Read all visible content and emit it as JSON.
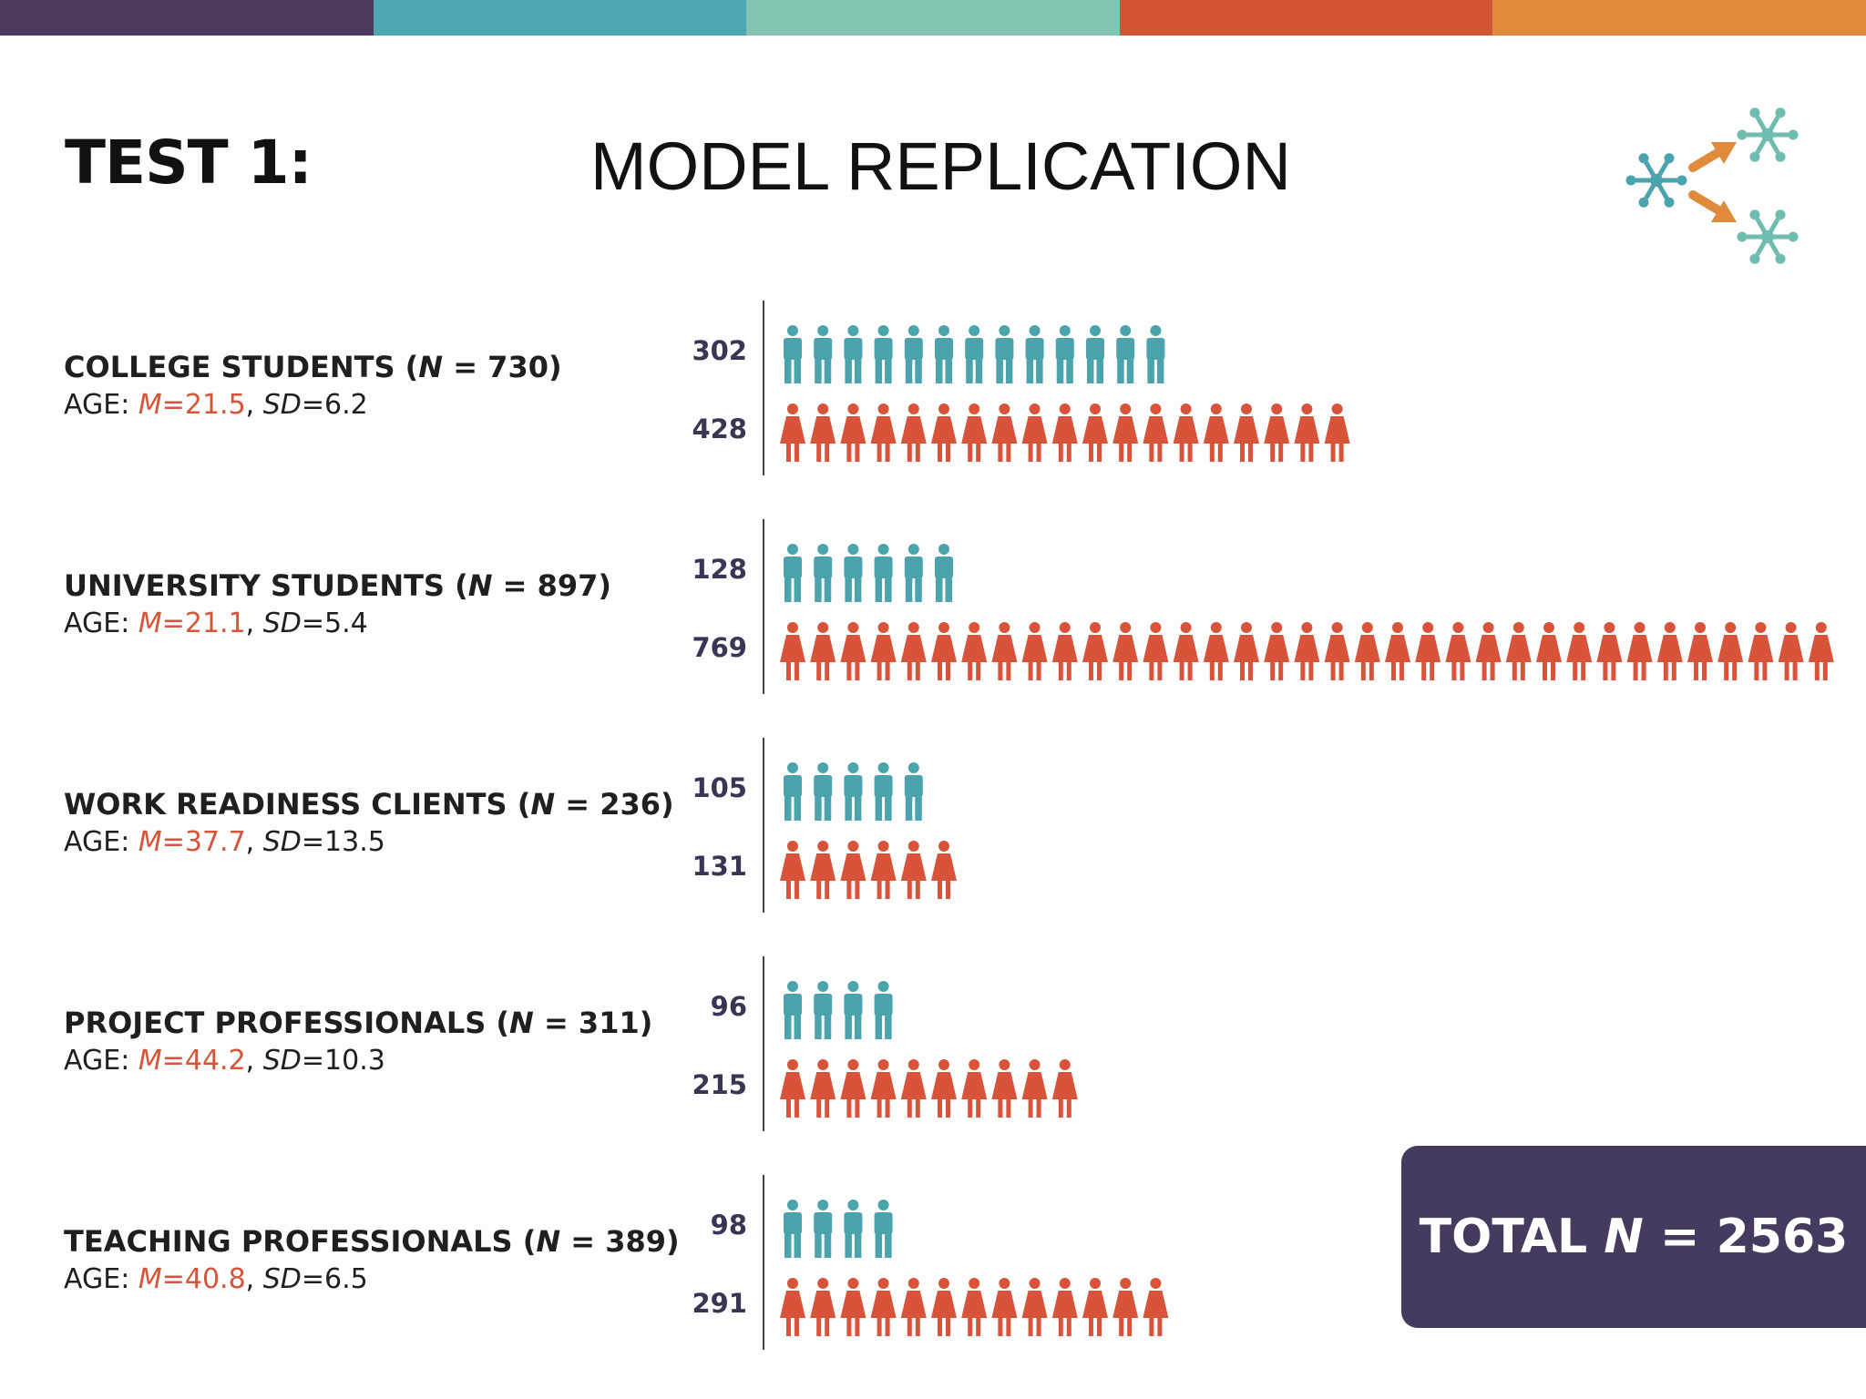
{
  "colors": {
    "topbar": [
      "#4b3a5e",
      "#4ea6b3",
      "#84c4b5",
      "#d35434",
      "#e08a3c"
    ],
    "male": "#4aa3ad",
    "female": "#d7533a",
    "accent_m": "#d5553b",
    "total_box": "#463a5f",
    "logo_primary": "#4aa3ad",
    "logo_secondary": "#6fbdb0",
    "logo_arrow": "#e08a3c"
  },
  "header": {
    "test_label": "TEST 1:",
    "title": "MODEL REPLICATION"
  },
  "logo": {
    "icon": "network-replication-icon"
  },
  "chart_data": {
    "type": "pictogram",
    "unit_note_hidden": "",
    "groups": [
      {
        "name": "COLLEGE STUDENTS",
        "n_label": "N",
        "n_value": "730",
        "age_prefix": "AGE: ",
        "m_label": "M",
        "m_value": "21.5",
        "sd_label": "SD",
        "sd_value": "6.2",
        "male": 302,
        "female": 428,
        "male_icons": 13,
        "female_icons": 19
      },
      {
        "name": "UNIVERSITY STUDENTS",
        "n_label": "N",
        "n_value": "897",
        "age_prefix": "AGE: ",
        "m_label": "M",
        "m_value": "21.1",
        "sd_label": "SD",
        "sd_value": "5.4",
        "male": 128,
        "female": 769,
        "male_icons": 6,
        "female_icons": 35
      },
      {
        "name": "WORK READINESS CLIENTS",
        "n_label": "N",
        "n_value": "236",
        "age_prefix": "AGE: ",
        "m_label": "M",
        "m_value": "37.7",
        "sd_label": "SD",
        "sd_value": "13.5",
        "male": 105,
        "female": 131,
        "male_icons": 5,
        "female_icons": 6
      },
      {
        "name": "PROJECT PROFESSIONALS",
        "n_label": "N",
        "n_value": "311",
        "age_prefix": "AGE: ",
        "m_label": "M",
        "m_value": "44.2",
        "sd_label": "SD",
        "sd_value": "10.3",
        "male": 96,
        "female": 215,
        "male_icons": 4,
        "female_icons": 10
      },
      {
        "name": "TEACHING PROFESSIONALS",
        "n_label": "N",
        "n_value": "389",
        "age_prefix": "AGE: ",
        "m_label": "M",
        "m_value": "40.8",
        "sd_label": "SD",
        "sd_value": "6.5",
        "male": 98,
        "female": 291,
        "male_icons": 4,
        "female_icons": 13
      }
    ]
  },
  "total": {
    "prefix": "TOTAL ",
    "n_label": "N",
    "value": " = 2563"
  }
}
